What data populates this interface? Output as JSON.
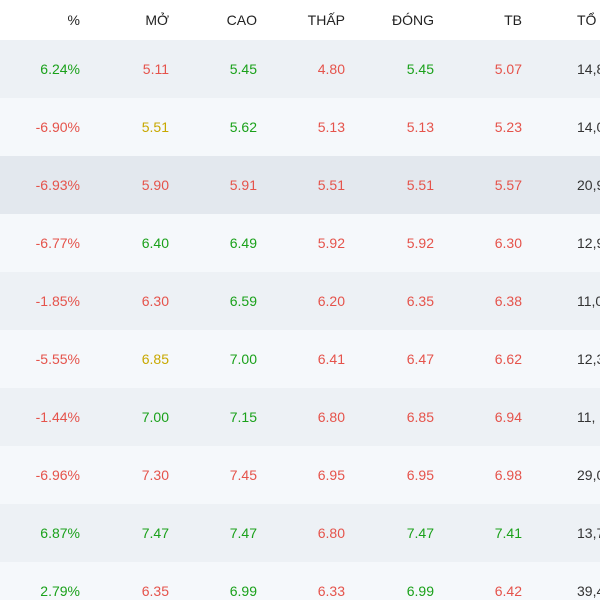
{
  "headers": {
    "pct": "%",
    "open": "MỞ",
    "high": "CAO",
    "low": "THẤP",
    "close": "ĐÓNG",
    "avg": "TB",
    "total": "TỔ"
  },
  "colors": {
    "up": "#1aa11a",
    "down": "#e5534b",
    "reference": "#c8a800"
  },
  "rows": [
    {
      "pct": {
        "v": "6.24%",
        "c": "up"
      },
      "open": {
        "v": "5.11",
        "c": "down"
      },
      "high": {
        "v": "5.45",
        "c": "up"
      },
      "low": {
        "v": "4.80",
        "c": "down"
      },
      "close": {
        "v": "5.45",
        "c": "up"
      },
      "avg": {
        "v": "5.07",
        "c": "down"
      },
      "total": {
        "v": "14,8",
        "c": "neutral"
      }
    },
    {
      "pct": {
        "v": "-6.90%",
        "c": "down"
      },
      "open": {
        "v": "5.51",
        "c": "ref"
      },
      "high": {
        "v": "5.62",
        "c": "up"
      },
      "low": {
        "v": "5.13",
        "c": "down"
      },
      "close": {
        "v": "5.13",
        "c": "down"
      },
      "avg": {
        "v": "5.23",
        "c": "down"
      },
      "total": {
        "v": "14,0",
        "c": "neutral"
      }
    },
    {
      "pct": {
        "v": "-6.93%",
        "c": "down"
      },
      "open": {
        "v": "5.90",
        "c": "down"
      },
      "high": {
        "v": "5.91",
        "c": "down"
      },
      "low": {
        "v": "5.51",
        "c": "down"
      },
      "close": {
        "v": "5.51",
        "c": "down"
      },
      "avg": {
        "v": "5.57",
        "c": "down"
      },
      "total": {
        "v": "20,9",
        "c": "neutral"
      }
    },
    {
      "pct": {
        "v": "-6.77%",
        "c": "down"
      },
      "open": {
        "v": "6.40",
        "c": "up"
      },
      "high": {
        "v": "6.49",
        "c": "up"
      },
      "low": {
        "v": "5.92",
        "c": "down"
      },
      "close": {
        "v": "5.92",
        "c": "down"
      },
      "avg": {
        "v": "6.30",
        "c": "down"
      },
      "total": {
        "v": "12,9",
        "c": "neutral"
      }
    },
    {
      "pct": {
        "v": "-1.85%",
        "c": "down"
      },
      "open": {
        "v": "6.30",
        "c": "down"
      },
      "high": {
        "v": "6.59",
        "c": "up"
      },
      "low": {
        "v": "6.20",
        "c": "down"
      },
      "close": {
        "v": "6.35",
        "c": "down"
      },
      "avg": {
        "v": "6.38",
        "c": "down"
      },
      "total": {
        "v": "11,0",
        "c": "neutral"
      }
    },
    {
      "pct": {
        "v": "-5.55%",
        "c": "down"
      },
      "open": {
        "v": "6.85",
        "c": "ref"
      },
      "high": {
        "v": "7.00",
        "c": "up"
      },
      "low": {
        "v": "6.41",
        "c": "down"
      },
      "close": {
        "v": "6.47",
        "c": "down"
      },
      "avg": {
        "v": "6.62",
        "c": "down"
      },
      "total": {
        "v": "12,3",
        "c": "neutral"
      }
    },
    {
      "pct": {
        "v": "-1.44%",
        "c": "down"
      },
      "open": {
        "v": "7.00",
        "c": "up"
      },
      "high": {
        "v": "7.15",
        "c": "up"
      },
      "low": {
        "v": "6.80",
        "c": "down"
      },
      "close": {
        "v": "6.85",
        "c": "down"
      },
      "avg": {
        "v": "6.94",
        "c": "down"
      },
      "total": {
        "v": "11,",
        "c": "neutral"
      }
    },
    {
      "pct": {
        "v": "-6.96%",
        "c": "down"
      },
      "open": {
        "v": "7.30",
        "c": "down"
      },
      "high": {
        "v": "7.45",
        "c": "down"
      },
      "low": {
        "v": "6.95",
        "c": "down"
      },
      "close": {
        "v": "6.95",
        "c": "down"
      },
      "avg": {
        "v": "6.98",
        "c": "down"
      },
      "total": {
        "v": "29,0",
        "c": "neutral"
      }
    },
    {
      "pct": {
        "v": "6.87%",
        "c": "up"
      },
      "open": {
        "v": "7.47",
        "c": "up"
      },
      "high": {
        "v": "7.47",
        "c": "up"
      },
      "low": {
        "v": "6.80",
        "c": "down"
      },
      "close": {
        "v": "7.47",
        "c": "up"
      },
      "avg": {
        "v": "7.41",
        "c": "up"
      },
      "total": {
        "v": "13,7",
        "c": "neutral"
      }
    },
    {
      "pct": {
        "v": "2.79%",
        "c": "up"
      },
      "open": {
        "v": "6.35",
        "c": "down"
      },
      "high": {
        "v": "6.99",
        "c": "up"
      },
      "low": {
        "v": "6.33",
        "c": "down"
      },
      "close": {
        "v": "6.99",
        "c": "up"
      },
      "avg": {
        "v": "6.42",
        "c": "down"
      },
      "total": {
        "v": "39,4",
        "c": "neutral"
      }
    }
  ]
}
